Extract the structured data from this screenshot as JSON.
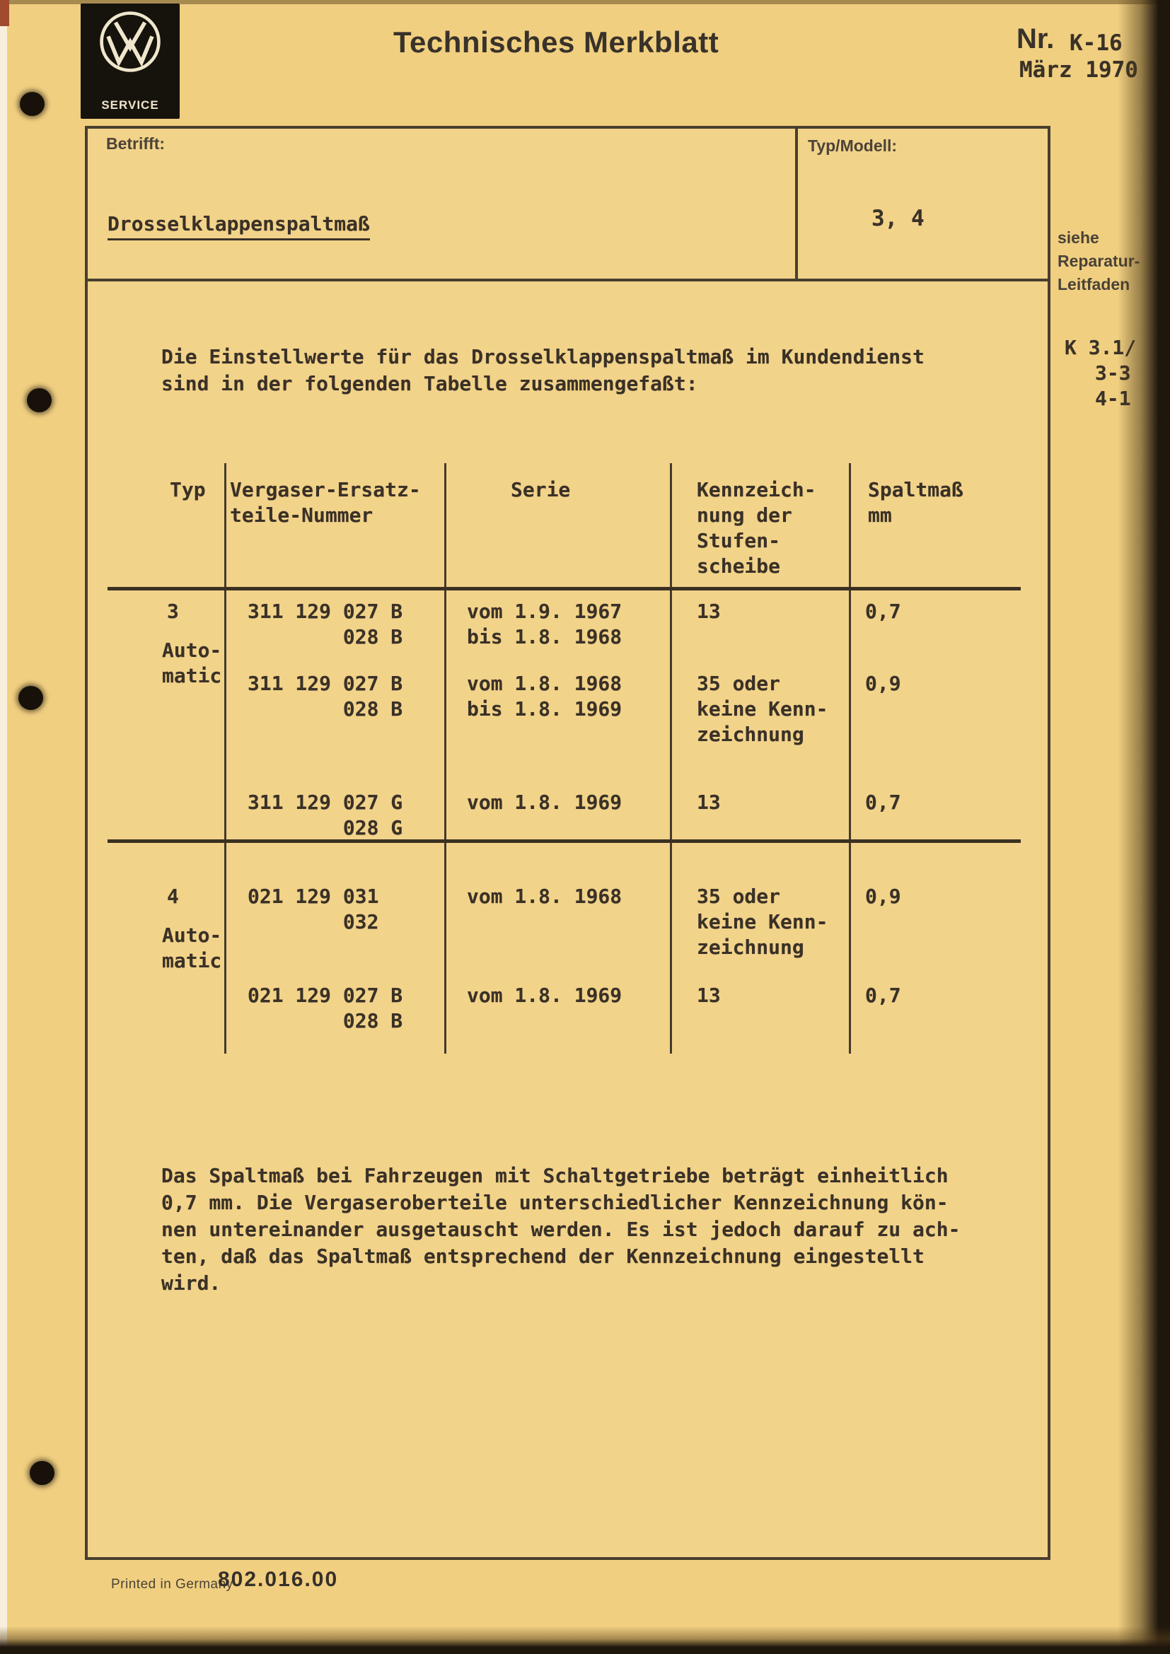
{
  "document": {
    "header": {
      "logo_brand": "VW",
      "logo_service": "SERVICE",
      "title": "Technisches Merkblatt",
      "number_label": "Nr.",
      "number": "K-16",
      "date": "März 1970"
    },
    "subject": {
      "label": "Betrifft:",
      "value": "Drosselklappenspaltmaß"
    },
    "model": {
      "label": "Typ/Modell:",
      "value": "3, 4"
    },
    "margin": {
      "see_lines": [
        "siehe",
        "Reparatur-",
        "Leitfaden"
      ],
      "ref_lines": [
        "K 3.1/",
        "3-3",
        "4-1"
      ]
    },
    "intro_lines": [
      "Die Einstellwerte für das Drosselklappenspaltmaß im Kundendienst",
      "sind in der folgenden Tabelle zusammengefaßt:"
    ],
    "table": {
      "header": {
        "typ": [
          "Typ"
        ],
        "nummer": [
          "Vergaser-Ersatz-",
          "teile-Nummer"
        ],
        "serie": [
          "Serie"
        ],
        "kennzeichnung": [
          "Kennzeich-",
          "nung der",
          "Stufen-",
          "scheibe"
        ],
        "spaltmass": [
          "Spaltmaß",
          "mm"
        ]
      },
      "groups": [
        {
          "typ": "3",
          "typ_sub": [
            "Auto-",
            "matic"
          ],
          "rows": [
            {
              "nummer": [
                "311 129 027 B",
                "028 B"
              ],
              "serie": [
                "vom 1.9. 1967",
                "bis 1.8. 1968"
              ],
              "kennzeichnung": [
                "13"
              ],
              "spaltmass": "0,7"
            },
            {
              "nummer": [
                "311 129 027 B",
                "028 B"
              ],
              "serie": [
                "vom 1.8. 1968",
                "bis 1.8. 1969"
              ],
              "kennzeichnung": [
                "35 oder",
                "keine Kenn-",
                "zeichnung"
              ],
              "spaltmass": "0,9"
            },
            {
              "nummer": [
                "311 129 027 G",
                "028 G"
              ],
              "serie": [
                "vom 1.8. 1969"
              ],
              "kennzeichnung": [
                "13"
              ],
              "spaltmass": "0,7"
            }
          ]
        },
        {
          "typ": "4",
          "typ_sub": [
            "Auto-",
            "matic"
          ],
          "rows": [
            {
              "nummer": [
                "021 129 031",
                "032"
              ],
              "serie": [
                "vom 1.8. 1968"
              ],
              "kennzeichnung": [
                "35 oder",
                "keine Kenn-",
                "zeichnung"
              ],
              "spaltmass": "0,9"
            },
            {
              "nummer": [
                "021 129 027 B",
                "028 B"
              ],
              "serie": [
                "vom 1.8. 1969"
              ],
              "kennzeichnung": [
                "13"
              ],
              "spaltmass": "0,7"
            }
          ]
        }
      ]
    },
    "body_lines": [
      "Das Spaltmaß bei Fahrzeugen mit Schaltgetriebe beträgt einheitlich",
      "0,7 mm. Die Vergaseroberteile unterschiedlicher Kennzeichnung kön-",
      "nen untereinander ausgetauscht werden. Es ist jedoch darauf zu ach-",
      "ten, daß das Spaltmaß entsprechend der Kennzeichnung eingestellt",
      "wird."
    ],
    "footer": {
      "printed": "Printed in Germany",
      "code": "802.016.00"
    },
    "colors": {
      "paper": "#f0cf80",
      "ink": "#3a3127",
      "scan_edge": "#1f160c"
    }
  }
}
